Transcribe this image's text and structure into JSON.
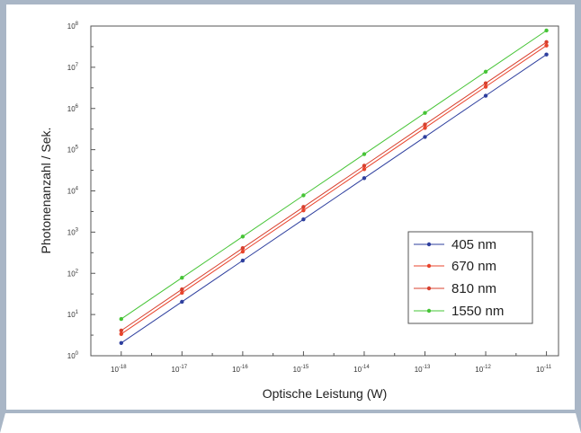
{
  "chart_data": {
    "type": "line",
    "xlabel": "Optische Leistung (W)",
    "ylabel": "Photonenanzahl / Sek.",
    "x_scale": "log",
    "y_scale": "log",
    "xlim": [
      3.16e-19,
      1.58e-11
    ],
    "ylim": [
      1,
      100000000.0
    ],
    "x_ticks": [
      {
        "base": "10",
        "exp": "-18",
        "value": 1e-18
      },
      {
        "base": "10",
        "exp": "-17",
        "value": 1e-17
      },
      {
        "base": "10",
        "exp": "-16",
        "value": 1e-16
      },
      {
        "base": "10",
        "exp": "-15",
        "value": 1e-15
      },
      {
        "base": "10",
        "exp": "-14",
        "value": 1e-14
      },
      {
        "base": "10",
        "exp": "-13",
        "value": 1e-13
      },
      {
        "base": "10",
        "exp": "-12",
        "value": 1e-12
      },
      {
        "base": "10",
        "exp": "-11",
        "value": 1e-11
      }
    ],
    "y_ticks": [
      {
        "base": "10",
        "exp": "0",
        "value": 1
      },
      {
        "base": "10",
        "exp": "1",
        "value": 10
      },
      {
        "base": "10",
        "exp": "2",
        "value": 100
      },
      {
        "base": "10",
        "exp": "3",
        "value": 1000
      },
      {
        "base": "10",
        "exp": "4",
        "value": 10000
      },
      {
        "base": "10",
        "exp": "5",
        "value": 100000
      },
      {
        "base": "10",
        "exp": "6",
        "value": 1000000
      },
      {
        "base": "10",
        "exp": "7",
        "value": 10000000
      },
      {
        "base": "10",
        "exp": "8",
        "value": 100000000
      }
    ],
    "x": [
      1e-18,
      1e-17,
      1e-16,
      1e-15,
      1e-14,
      1e-13,
      1e-12,
      1e-11
    ],
    "series": [
      {
        "name": "405 nm",
        "color": "#2e3f9e",
        "values": [
          2.04,
          20.4,
          204,
          2040,
          20400,
          204000,
          2040000,
          20400000
        ]
      },
      {
        "name": "670 nm",
        "color": "#e8442c",
        "values": [
          3.37,
          33.7,
          337,
          3370,
          33700,
          337000,
          3370000,
          33700000
        ]
      },
      {
        "name": "810 nm",
        "color": "#d8402e",
        "values": [
          4.08,
          40.8,
          408,
          4080,
          40800,
          408000,
          4080000,
          40800000
        ]
      },
      {
        "name": "1550 nm",
        "color": "#46c436",
        "values": [
          7.8,
          78,
          780,
          7800,
          78000,
          780000,
          7800000,
          78000000
        ]
      }
    ],
    "grid": false,
    "legend_position": "bottom-right"
  }
}
